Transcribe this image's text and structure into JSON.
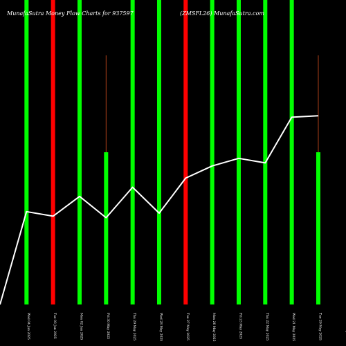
{
  "chart_data": {
    "type": "bar",
    "title_left": "MunafaSutra  Money Flow  Charts for 937597",
    "title_right": "(ZMSFL26) MunafaSutra.com",
    "categories": [
      "Wed 04 Jun 2025",
      "Tue 03 Jun 2025",
      "Mon 02 Jun 2025",
      "Fri 30 May 2025",
      "Thu 29 May 2025",
      "Wed 28 May 2025",
      "Tue 27 May 2025",
      "Mon 26 May 2025",
      "Fri 23 May 2025",
      "Thu 22 May 2025",
      "Wed 21 May 2025",
      "Tue 20 May 2025",
      "Mon 19 May 2025"
    ],
    "bars": [
      {
        "value": 100,
        "color": "green",
        "wick": false
      },
      {
        "value": 100,
        "color": "red",
        "wick": false
      },
      {
        "value": 100,
        "color": "green",
        "wick": false
      },
      {
        "value": 50,
        "color": "green",
        "wick": true
      },
      {
        "value": 100,
        "color": "green",
        "wick": false
      },
      {
        "value": 100,
        "color": "green",
        "wick": false
      },
      {
        "value": 100,
        "color": "red",
        "wick": false
      },
      {
        "value": 100,
        "color": "green",
        "wick": false
      },
      {
        "value": 100,
        "color": "green",
        "wick": false
      },
      {
        "value": 100,
        "color": "green",
        "wick": false
      },
      {
        "value": 100,
        "color": "green",
        "wick": false
      },
      {
        "value": 50,
        "color": "green",
        "wick": true
      }
    ],
    "line_values": [
      0,
      30.5,
      29,
      35.5,
      28.5,
      38.5,
      30,
      41.5,
      45.5,
      48,
      46.5,
      61.5,
      62
    ],
    "ylim": [
      0,
      100
    ],
    "colors": {
      "green": "#00ff00",
      "red": "#ff0000",
      "wick": "#b0411a",
      "line": "#ffffff",
      "background": "#000000"
    }
  }
}
